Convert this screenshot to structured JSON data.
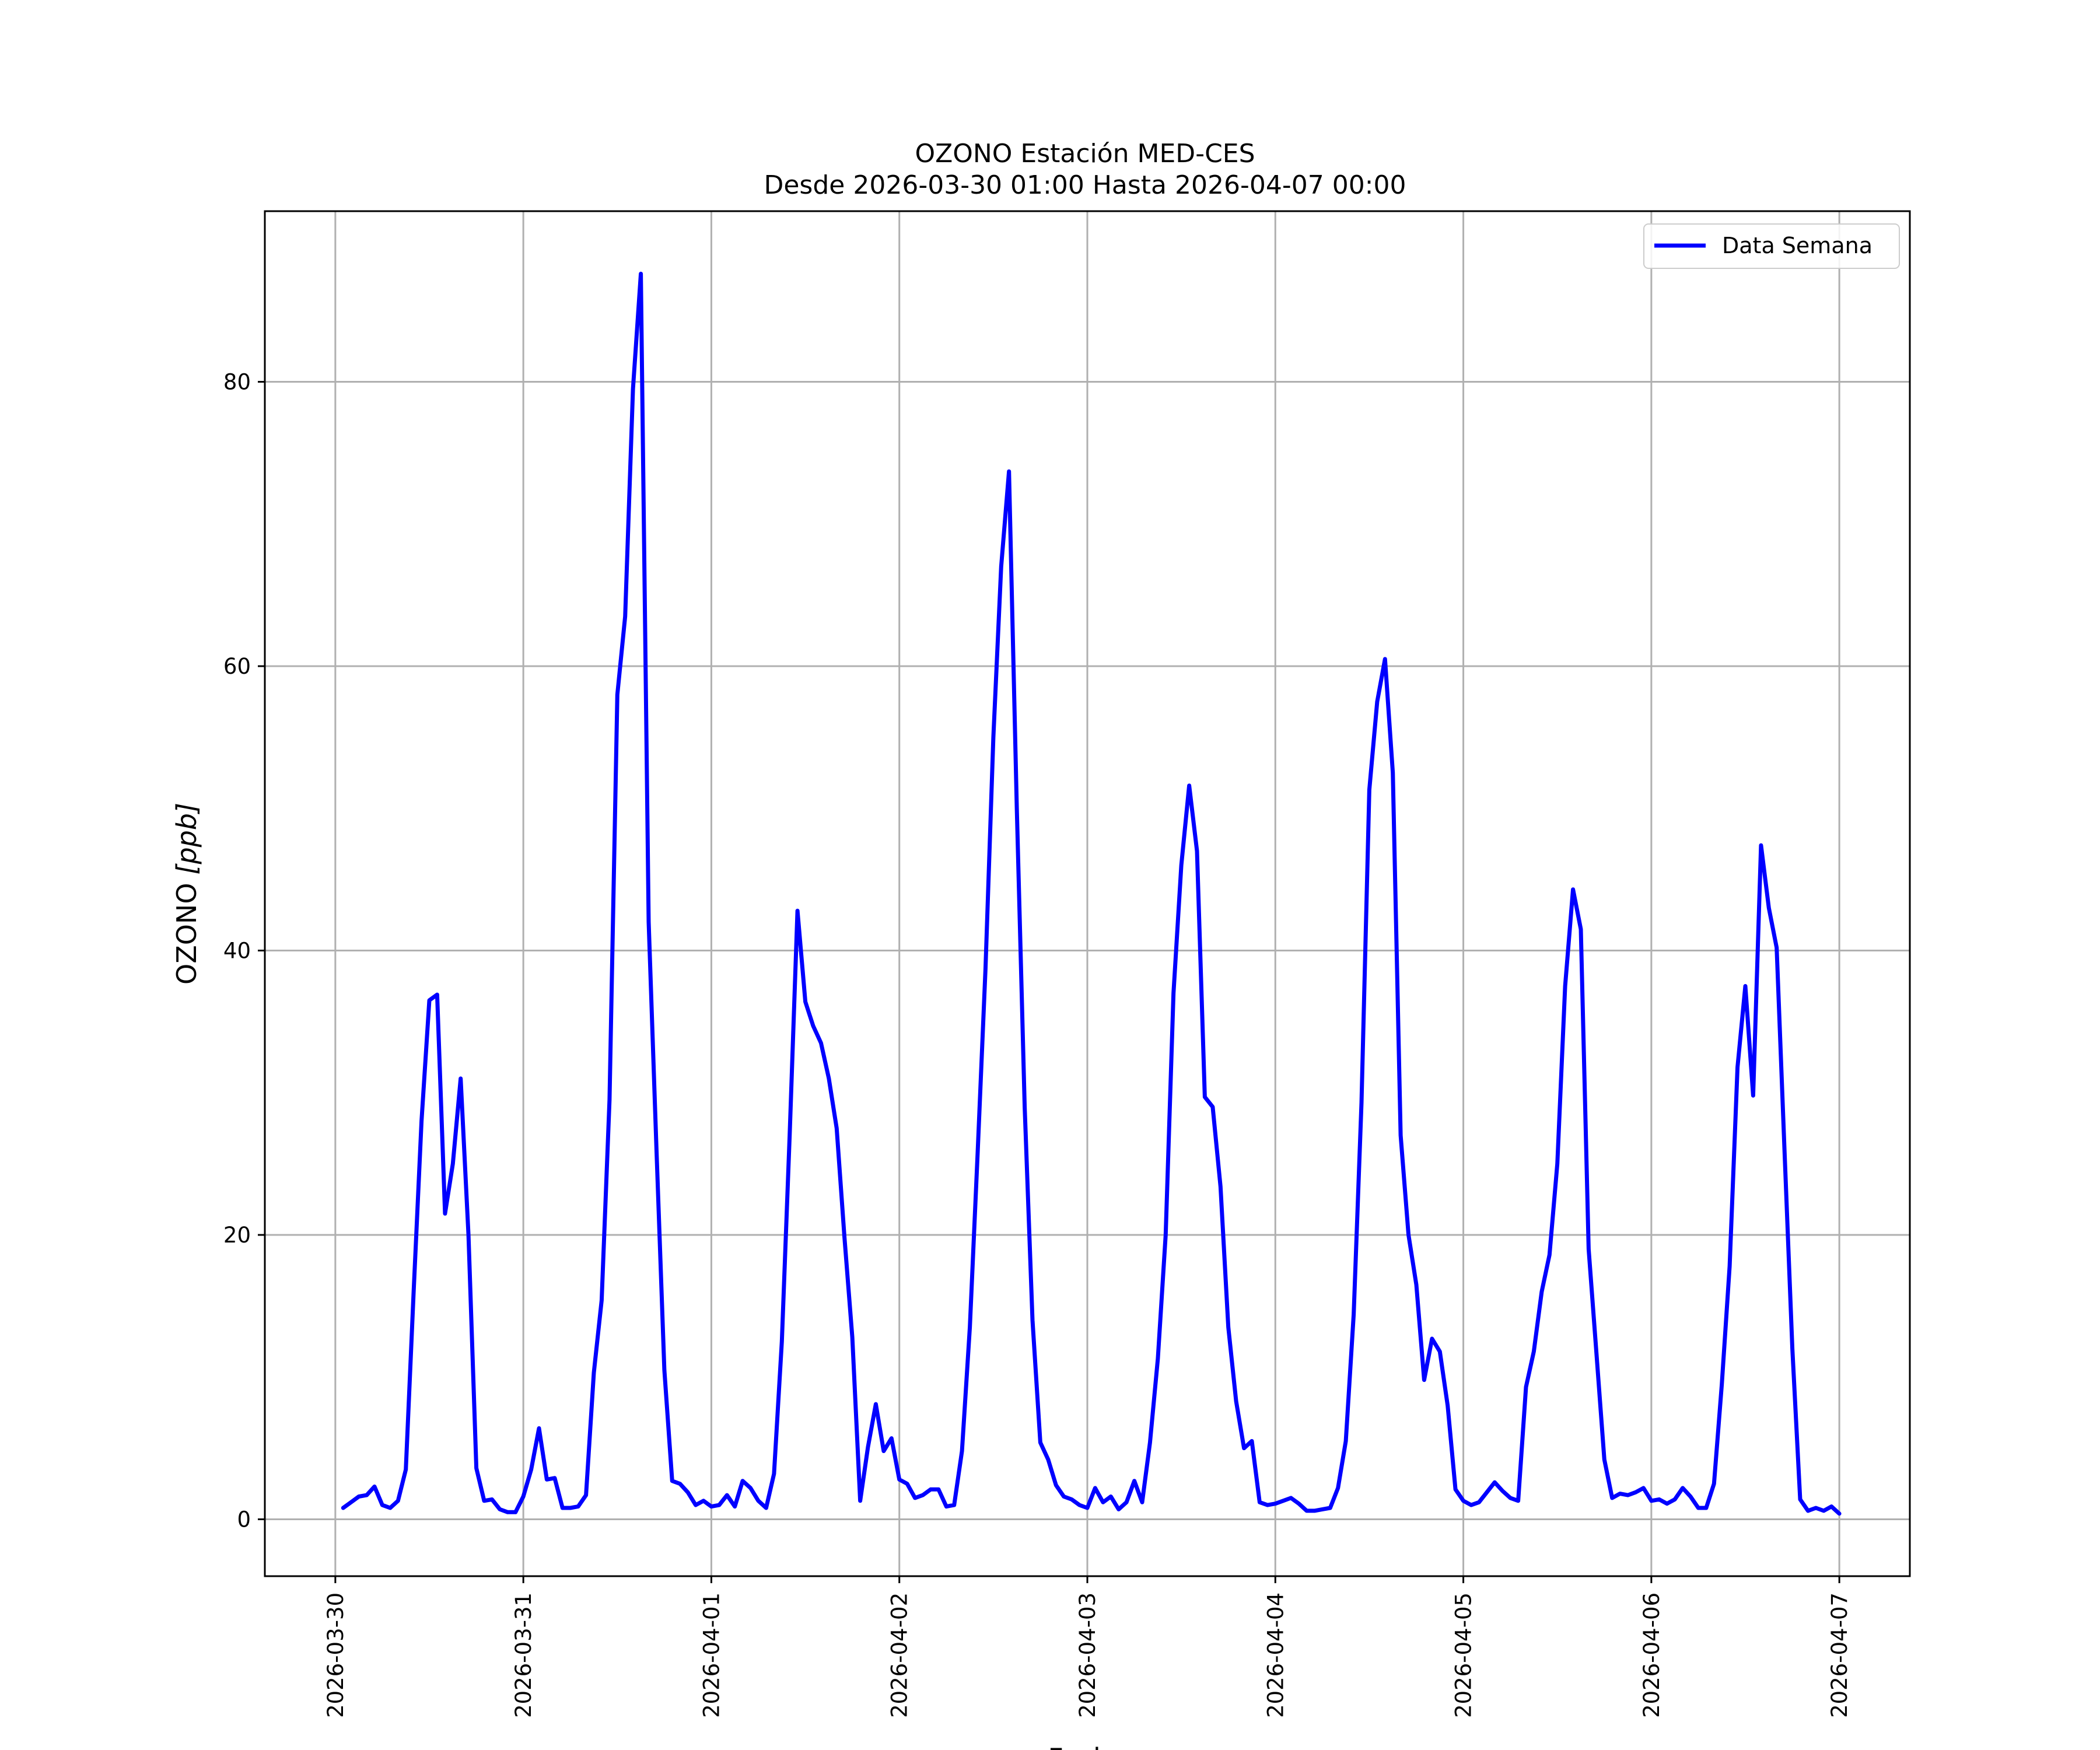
{
  "chart_data": {
    "type": "line",
    "title": "OZONO Estación MED-CES",
    "subtitle": "Desde 2026-03-30 01:00 Hasta 2026-04-07 00:00",
    "xlabel": "Fecha",
    "ylabel_text": "OZONO",
    "ylabel_unit": "[ppb]",
    "xlim": [
      "2026-03-29 15:00",
      "2026-04-07 09:00"
    ],
    "ylim": [
      -4,
      92
    ],
    "grid": true,
    "legend_position": "upper right",
    "x_ticks": [
      "2026-03-30",
      "2026-03-31",
      "2026-04-01",
      "2026-04-02",
      "2026-04-03",
      "2026-04-04",
      "2026-04-05",
      "2026-04-06",
      "2026-04-07"
    ],
    "y_ticks": [
      "0",
      "20",
      "40",
      "60",
      "80"
    ],
    "x_start": "2026-03-30 01:00",
    "x_step_hours": 1,
    "series": [
      {
        "name": "Data Semana",
        "color": "#0000ff",
        "values": [
          0.8,
          1.2,
          1.6,
          1.7,
          2.3,
          1.0,
          0.8,
          1.3,
          3.5,
          16,
          28,
          36.5,
          36.9,
          21.5,
          25,
          31,
          20,
          3.6,
          1.3,
          1.4,
          0.7,
          0.5,
          0.5,
          1.6,
          3.5,
          6.4,
          2.8,
          2.9,
          0.8,
          0.8,
          0.9,
          1.7,
          10.3,
          15.4,
          29.5,
          58,
          63.5,
          79.5,
          87.6,
          42,
          26,
          10.5,
          2.7,
          2.5,
          1.9,
          1.0,
          1.3,
          0.9,
          1.0,
          1.7,
          0.9,
          2.7,
          2.2,
          1.3,
          0.8,
          3.2,
          12.5,
          27,
          42.8,
          36.4,
          34.7,
          33.5,
          31,
          27.5,
          19.8,
          12.8,
          1.3,
          5.1,
          8.1,
          4.8,
          5.7,
          2.8,
          2.5,
          1.5,
          1.7,
          2.1,
          2.1,
          0.9,
          1.0,
          4.8,
          13.5,
          25.8,
          38.7,
          55,
          67,
          73.7,
          50,
          29,
          14,
          5.4,
          4.2,
          2.4,
          1.6,
          1.4,
          1.0,
          0.8,
          2.2,
          1.2,
          1.6,
          0.7,
          1.2,
          2.7,
          1.2,
          5.4,
          11.3,
          20,
          37,
          46,
          51.6,
          47,
          29.7,
          29,
          23.4,
          13.5,
          8.3,
          5.0,
          5.5,
          1.2,
          1.0,
          1.1,
          1.3,
          1.5,
          1.1,
          0.6,
          0.6,
          0.7,
          0.8,
          2.2,
          5.5,
          14.4,
          29.3,
          51.3,
          57.5,
          60.5,
          52.5,
          27,
          20,
          16.5,
          9.8,
          12.7,
          11.8,
          8,
          2.1,
          1.3,
          1.0,
          1.2,
          1.9,
          2.6,
          2.0,
          1.5,
          1.3,
          9.3,
          11.8,
          16,
          18.6,
          25,
          37.5,
          44.3,
          41.5,
          19,
          11.6,
          4.2,
          1.5,
          1.8,
          1.7,
          1.9,
          2.2,
          1.3,
          1.4,
          1.1,
          1.4,
          2.2,
          1.6,
          0.8,
          0.8,
          2.5,
          9.5,
          17.8,
          31.8,
          37.5,
          29.8,
          47.4,
          43,
          40.2,
          26,
          12,
          1.4,
          0.6,
          0.8,
          0.6,
          0.9,
          0.4
        ]
      }
    ]
  }
}
